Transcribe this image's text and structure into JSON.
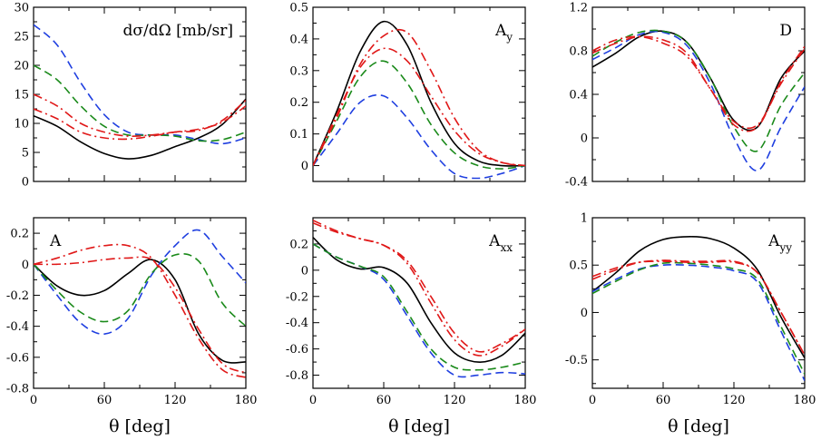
{
  "colors": {
    "solid": "#000000",
    "blue": "#1f3fe0",
    "green": "#1a8a1a",
    "red": "#e01818"
  },
  "chart_data": [
    {
      "type": "line",
      "title": "dσ/dΩ  [mb/sr]",
      "title_pos": "top-right",
      "xlabel": "",
      "xlim": [
        0,
        180
      ],
      "ylim": [
        0,
        30
      ],
      "xticks": [
        0,
        60,
        120,
        180
      ],
      "xticklabels": [
        "",
        "",
        "",
        ""
      ],
      "yticks": [
        0,
        5,
        10,
        15,
        20,
        25,
        30
      ],
      "yticklabels": [
        "0",
        "5",
        "10",
        "15",
        "20",
        "25",
        "30"
      ],
      "x": [
        0,
        20,
        40,
        60,
        80,
        100,
        120,
        140,
        160,
        180
      ],
      "series": [
        {
          "style": "solid",
          "color": "#000000",
          "values": [
            11.3,
            9.5,
            6.8,
            4.8,
            3.9,
            4.5,
            6.0,
            7.5,
            9.8,
            14.2
          ]
        },
        {
          "style": "dashed",
          "color": "#1f3fe0",
          "values": [
            27.0,
            23.5,
            17.0,
            11.5,
            8.5,
            8.0,
            8.0,
            7.2,
            6.5,
            7.5
          ]
        },
        {
          "style": "dashed",
          "color": "#1a8a1a",
          "values": [
            20.0,
            17.5,
            13.0,
            9.5,
            8.0,
            8.0,
            7.8,
            7.0,
            7.2,
            8.5
          ]
        },
        {
          "style": "dashdot",
          "color": "#e01818",
          "values": [
            15.0,
            13.0,
            10.0,
            8.5,
            7.8,
            8.0,
            8.5,
            8.8,
            10.5,
            14.0
          ]
        },
        {
          "style": "dashdot",
          "color": "#e01818",
          "values": [
            12.5,
            10.8,
            8.5,
            7.5,
            7.3,
            7.8,
            8.5,
            9.0,
            10.2,
            13.0
          ]
        }
      ]
    },
    {
      "type": "line",
      "title": "A_y",
      "title_pos": "top-right",
      "xlabel": "",
      "xlim": [
        0,
        180
      ],
      "ylim": [
        -0.05,
        0.5
      ],
      "xticks": [
        0,
        60,
        120,
        180
      ],
      "xticklabels": [
        "",
        "",
        "",
        ""
      ],
      "yticks": [
        0,
        0.1,
        0.2,
        0.3,
        0.4,
        0.5
      ],
      "yticklabels": [
        "0",
        "0.1",
        "0.2",
        "0.3",
        "0.4",
        "0.5"
      ],
      "x": [
        0,
        20,
        40,
        60,
        80,
        100,
        120,
        140,
        160,
        180
      ],
      "series": [
        {
          "style": "solid",
          "color": "#000000",
          "values": [
            0.0,
            0.17,
            0.36,
            0.455,
            0.38,
            0.2,
            0.07,
            0.015,
            0.0,
            0.0
          ]
        },
        {
          "style": "dashed",
          "color": "#1f3fe0",
          "values": [
            0.0,
            0.1,
            0.2,
            0.22,
            0.15,
            0.05,
            -0.025,
            -0.04,
            -0.025,
            0.0
          ]
        },
        {
          "style": "dashed",
          "color": "#1a8a1a",
          "values": [
            0.0,
            0.14,
            0.28,
            0.33,
            0.26,
            0.13,
            0.04,
            0.0,
            -0.01,
            0.0
          ]
        },
        {
          "style": "dashdot",
          "color": "#e01818",
          "values": [
            0.0,
            0.16,
            0.31,
            0.37,
            0.33,
            0.22,
            0.11,
            0.04,
            0.01,
            0.0
          ]
        },
        {
          "style": "dashdot",
          "color": "#e01818",
          "values": [
            0.0,
            0.15,
            0.32,
            0.41,
            0.42,
            0.3,
            0.15,
            0.05,
            0.01,
            0.0
          ]
        }
      ]
    },
    {
      "type": "line",
      "title": "D",
      "title_pos": "top-right",
      "xlabel": "",
      "xlim": [
        0,
        180
      ],
      "ylim": [
        -0.4,
        1.2
      ],
      "xticks": [
        0,
        60,
        120,
        180
      ],
      "xticklabels": [
        "",
        "",
        "",
        ""
      ],
      "yticks": [
        -0.4,
        0,
        0.4,
        0.8,
        1.2
      ],
      "yticklabels": [
        "-0.4",
        "0",
        "0.4",
        "0.8",
        "1.2"
      ],
      "x": [
        0,
        20,
        40,
        60,
        80,
        100,
        120,
        140,
        160,
        180
      ],
      "series": [
        {
          "style": "solid",
          "color": "#000000",
          "values": [
            0.65,
            0.78,
            0.93,
            0.98,
            0.88,
            0.55,
            0.16,
            0.1,
            0.55,
            0.8
          ]
        },
        {
          "style": "dashed",
          "color": "#1f3fe0",
          "values": [
            0.72,
            0.83,
            0.95,
            0.97,
            0.85,
            0.5,
            0.0,
            -0.3,
            0.1,
            0.47
          ]
        },
        {
          "style": "dashed",
          "color": "#1a8a1a",
          "values": [
            0.75,
            0.88,
            0.97,
            0.98,
            0.88,
            0.55,
            0.1,
            -0.12,
            0.3,
            0.6
          ]
        },
        {
          "style": "dashdot",
          "color": "#e01818",
          "values": [
            0.78,
            0.87,
            0.93,
            0.9,
            0.78,
            0.45,
            0.15,
            0.12,
            0.5,
            0.82
          ]
        },
        {
          "style": "dashdot",
          "color": "#e01818",
          "values": [
            0.8,
            0.9,
            0.93,
            0.87,
            0.75,
            0.45,
            0.12,
            0.1,
            0.52,
            0.84
          ]
        }
      ]
    },
    {
      "type": "line",
      "title": "A",
      "title_pos": "top-left",
      "xlabel": "θ  [deg]",
      "xlim": [
        0,
        180
      ],
      "ylim": [
        -0.8,
        0.3
      ],
      "xticks": [
        0,
        60,
        120,
        180
      ],
      "xticklabels": [
        "0",
        "60",
        "120",
        "180"
      ],
      "yticks": [
        -0.8,
        -0.6,
        -0.4,
        -0.2,
        0,
        0.2
      ],
      "yticklabels": [
        "-0.8",
        "-0.6",
        "-0.4",
        "-0.2",
        "0",
        "0.2"
      ],
      "x": [
        0,
        20,
        40,
        60,
        80,
        100,
        120,
        140,
        160,
        180
      ],
      "series": [
        {
          "style": "solid",
          "color": "#000000",
          "values": [
            0.0,
            -0.14,
            -0.2,
            -0.17,
            -0.06,
            0.03,
            -0.1,
            -0.45,
            -0.62,
            -0.63
          ]
        },
        {
          "style": "dashed",
          "color": "#1f3fe0",
          "values": [
            0.0,
            -0.2,
            -0.38,
            -0.45,
            -0.35,
            -0.07,
            0.12,
            0.22,
            0.05,
            -0.12
          ]
        },
        {
          "style": "dashed",
          "color": "#1a8a1a",
          "values": [
            0.0,
            -0.17,
            -0.31,
            -0.37,
            -0.3,
            -0.06,
            0.06,
            0.02,
            -0.25,
            -0.4
          ]
        },
        {
          "style": "dashdot",
          "color": "#e01818",
          "values": [
            0.0,
            0.04,
            0.09,
            0.12,
            0.12,
            0.04,
            -0.2,
            -0.48,
            -0.68,
            -0.73
          ]
        },
        {
          "style": "dashdot",
          "color": "#e01818",
          "values": [
            0.0,
            0.0,
            0.01,
            0.03,
            0.04,
            0.03,
            -0.15,
            -0.42,
            -0.64,
            -0.7
          ]
        }
      ]
    },
    {
      "type": "line",
      "title": "A_xx",
      "title_pos": "top-right",
      "xlabel": "θ  [deg]",
      "xlim": [
        0,
        180
      ],
      "ylim": [
        -0.9,
        0.4
      ],
      "xticks": [
        0,
        60,
        120,
        180
      ],
      "xticklabels": [
        "0",
        "60",
        "120",
        "180"
      ],
      "yticks": [
        -0.8,
        -0.6,
        -0.4,
        -0.2,
        0,
        0.2
      ],
      "yticklabels": [
        "-0.8",
        "-0.6",
        "-0.4",
        "-0.2",
        "0",
        "0.2"
      ],
      "x": [
        0,
        20,
        40,
        60,
        80,
        100,
        120,
        140,
        160,
        180
      ],
      "series": [
        {
          "style": "solid",
          "color": "#000000",
          "values": [
            0.25,
            0.08,
            0.01,
            0.02,
            -0.1,
            -0.4,
            -0.63,
            -0.7,
            -0.65,
            -0.48
          ]
        },
        {
          "style": "dashed",
          "color": "#1f3fe0",
          "values": [
            0.2,
            0.1,
            0.03,
            -0.07,
            -0.35,
            -0.63,
            -0.8,
            -0.8,
            -0.78,
            -0.79
          ]
        },
        {
          "style": "dashed",
          "color": "#1a8a1a",
          "values": [
            0.2,
            0.1,
            0.03,
            -0.05,
            -0.32,
            -0.6,
            -0.74,
            -0.76,
            -0.74,
            -0.7
          ]
        },
        {
          "style": "dashdot",
          "color": "#e01818",
          "values": [
            0.38,
            0.3,
            0.24,
            0.19,
            0.07,
            -0.2,
            -0.48,
            -0.62,
            -0.56,
            -0.45
          ]
        },
        {
          "style": "dashdot",
          "color": "#e01818",
          "values": [
            0.36,
            0.29,
            0.24,
            0.19,
            0.05,
            -0.25,
            -0.53,
            -0.65,
            -0.58,
            -0.45
          ]
        }
      ]
    },
    {
      "type": "line",
      "title": "A_yy",
      "title_pos": "top-right",
      "xlabel": "θ  [deg]",
      "xlim": [
        0,
        180
      ],
      "ylim": [
        -0.8,
        1.0
      ],
      "xticks": [
        0,
        60,
        120,
        180
      ],
      "xticklabels": [
        "0",
        "60",
        "120",
        "180"
      ],
      "yticks": [
        -0.5,
        0,
        0.5,
        1
      ],
      "yticklabels": [
        "-0.5",
        "0",
        "0.5",
        "1"
      ],
      "x": [
        0,
        20,
        40,
        60,
        80,
        100,
        120,
        140,
        160,
        180
      ],
      "series": [
        {
          "style": "solid",
          "color": "#000000",
          "values": [
            0.22,
            0.42,
            0.65,
            0.77,
            0.8,
            0.78,
            0.68,
            0.45,
            -0.05,
            -0.48
          ]
        },
        {
          "style": "dashed",
          "color": "#1f3fe0",
          "values": [
            0.22,
            0.35,
            0.46,
            0.5,
            0.5,
            0.48,
            0.44,
            0.32,
            -0.2,
            -0.72
          ]
        },
        {
          "style": "dashed",
          "color": "#1a8a1a",
          "values": [
            0.2,
            0.33,
            0.45,
            0.52,
            0.52,
            0.5,
            0.46,
            0.35,
            -0.15,
            -0.65
          ]
        },
        {
          "style": "dashdot",
          "color": "#e01818",
          "values": [
            0.35,
            0.45,
            0.53,
            0.55,
            0.54,
            0.54,
            0.54,
            0.42,
            0.0,
            -0.45
          ]
        },
        {
          "style": "dashdot",
          "color": "#e01818",
          "values": [
            0.38,
            0.47,
            0.53,
            0.54,
            0.53,
            0.53,
            0.53,
            0.42,
            0.0,
            -0.45
          ]
        }
      ]
    }
  ]
}
